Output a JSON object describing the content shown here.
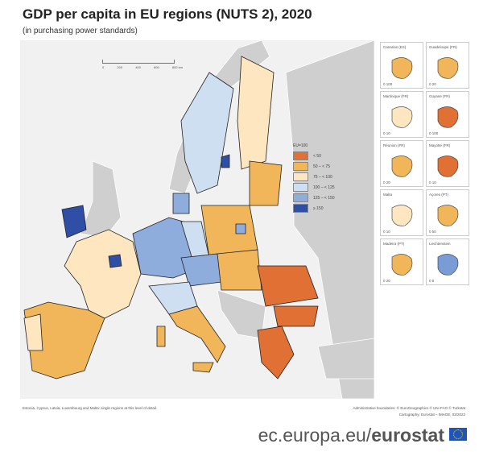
{
  "title": "GDP per capita in EU regions (NUTS 2), 2020",
  "subtitle": "(in purchasing power standards)",
  "scale_bar": {
    "labels": [
      "0",
      "200",
      "400",
      "600",
      "800 km"
    ]
  },
  "legend": {
    "title": "EU=100",
    "items": [
      {
        "label": "< 50",
        "color": "#e07033"
      },
      {
        "label": "50 – < 75",
        "color": "#f2b65a"
      },
      {
        "label": "75 – < 100",
        "color": "#fde6c0"
      },
      {
        "label": "100 – < 125",
        "color": "#cfdff2"
      },
      {
        "label": "125 – < 150",
        "color": "#8eacdc"
      },
      {
        "label": "≥ 150",
        "color": "#2f4fa6"
      }
    ]
  },
  "insets": [
    {
      "label": "Canarias (ES)",
      "scale": "0  100"
    },
    {
      "label": "Guadeloupe (FR)",
      "scale": "0  20"
    },
    {
      "label": "Martinique (FR)",
      "scale": "0  10"
    },
    {
      "label": "Guyane (FR)",
      "scale": "0  100"
    },
    {
      "label": "Réunion (FR)",
      "scale": "0  20"
    },
    {
      "label": "Mayotte (FR)",
      "scale": "0  10"
    },
    {
      "label": "Malta",
      "scale": "0  10"
    },
    {
      "label": "Açores (PT)",
      "scale": "0  50"
    },
    {
      "label": "Madeira (PT)",
      "scale": "0  20"
    },
    {
      "label": "Liechtenstein",
      "scale": "0  5"
    }
  ],
  "footnote": "Estonia, Cyprus, Latvia, Luxembourg and Malta: single regions at this level of detail.",
  "credits": [
    "Administrative boundaries: © EuroGeographics © UN–FAO © Turkstat",
    "Cartography: Eurostat – IMAGE, 02/2022"
  ],
  "brand": {
    "prefix": "ec.europa.eu/",
    "name": "eurostat"
  }
}
